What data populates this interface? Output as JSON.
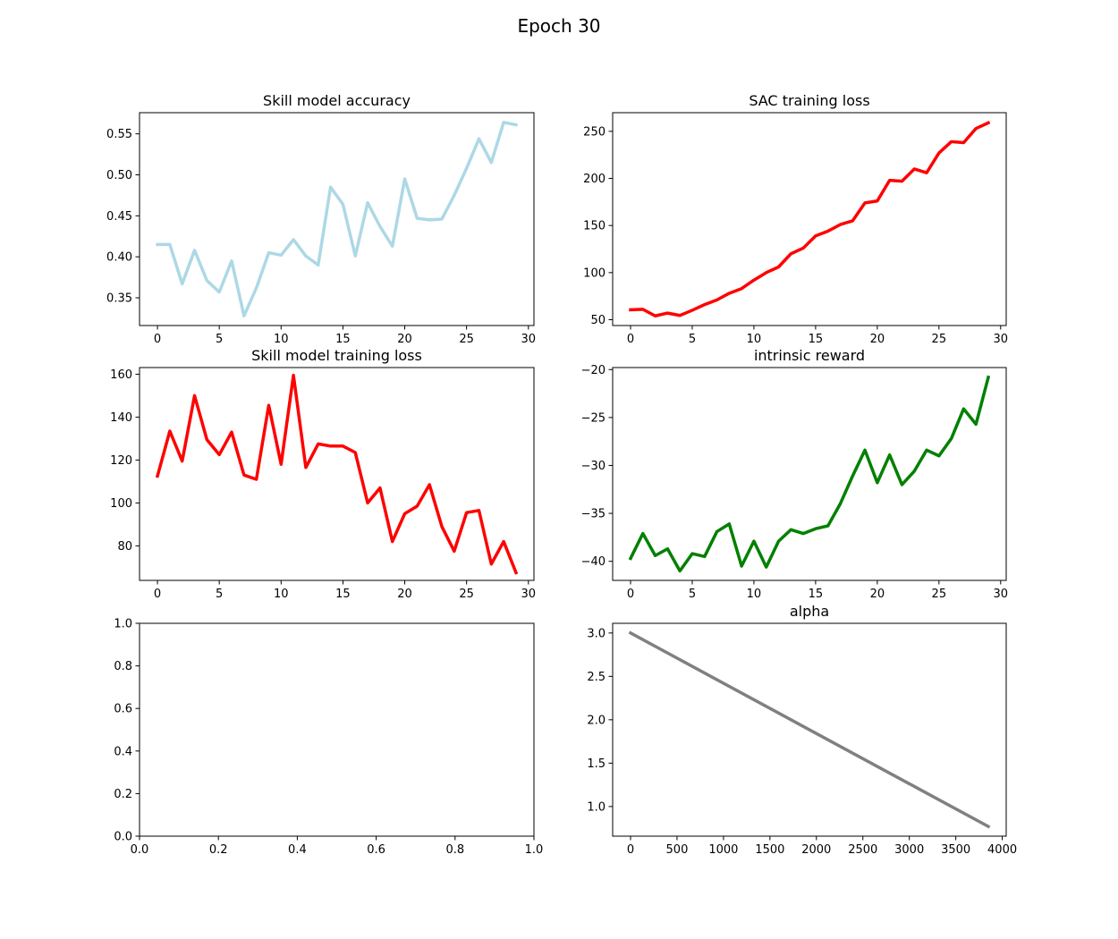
{
  "figure": {
    "suptitle": "Epoch 30"
  },
  "chart_data": [
    {
      "type": "line",
      "title": "Skill model accuracy",
      "color": "#add8e6",
      "x": [
        0,
        1,
        2,
        3,
        4,
        5,
        6,
        7,
        8,
        9,
        10,
        11,
        12,
        13,
        14,
        15,
        16,
        17,
        18,
        19,
        20,
        21,
        22,
        23,
        24,
        25,
        26,
        27,
        28,
        29
      ],
      "y": [
        0.415,
        0.415,
        0.367,
        0.408,
        0.371,
        0.357,
        0.395,
        0.328,
        0.362,
        0.405,
        0.402,
        0.421,
        0.401,
        0.39,
        0.485,
        0.464,
        0.401,
        0.466,
        0.437,
        0.413,
        0.495,
        0.447,
        0.445,
        0.446,
        0.475,
        0.508,
        0.544,
        0.515,
        0.564,
        0.561
      ],
      "xlim": [
        -1.45,
        30.45
      ],
      "ylim": [
        0.3162,
        0.5758
      ],
      "xticks": [
        0,
        5,
        10,
        15,
        20,
        25,
        30
      ],
      "xtick_labels": [
        "0",
        "5",
        "10",
        "15",
        "20",
        "25",
        "30"
      ],
      "yticks": [
        0.35,
        0.4,
        0.45,
        0.5,
        0.55
      ],
      "ytick_labels": [
        "0.35",
        "0.40",
        "0.45",
        "0.50",
        "0.55"
      ]
    },
    {
      "type": "line",
      "title": "SAC training loss",
      "color": "#ff0000",
      "x": [
        0,
        1,
        2,
        3,
        4,
        5,
        6,
        7,
        8,
        9,
        10,
        11,
        12,
        13,
        14,
        15,
        16,
        17,
        18,
        19,
        20,
        21,
        22,
        23,
        24,
        25,
        26,
        27,
        28,
        29
      ],
      "y": [
        60.5,
        61,
        54,
        57,
        54.5,
        60,
        66,
        71,
        78,
        83,
        92,
        100,
        106,
        120,
        126,
        139,
        144,
        151,
        155,
        174,
        176,
        198,
        197,
        210,
        206,
        227,
        239,
        238,
        253,
        259
      ],
      "xlim": [
        -1.45,
        30.45
      ],
      "ylim": [
        43.8,
        269.8
      ],
      "xticks": [
        0,
        5,
        10,
        15,
        20,
        25,
        30
      ],
      "xtick_labels": [
        "0",
        "5",
        "10",
        "15",
        "20",
        "25",
        "30"
      ],
      "yticks": [
        50,
        100,
        150,
        200,
        250
      ],
      "ytick_labels": [
        "50",
        "100",
        "150",
        "200",
        "250"
      ]
    },
    {
      "type": "line",
      "title": "Skill model training loss",
      "color": "#ff0000",
      "x": [
        0,
        1,
        2,
        3,
        4,
        5,
        6,
        7,
        8,
        9,
        10,
        11,
        12,
        13,
        14,
        15,
        16,
        17,
        18,
        19,
        20,
        21,
        22,
        23,
        24,
        25,
        26,
        27,
        28,
        29
      ],
      "y": [
        112.5,
        133.5,
        119.5,
        150,
        129.5,
        122.5,
        133,
        113,
        111,
        145.5,
        118,
        159.5,
        116.5,
        127.5,
        126.5,
        126.5,
        123.5,
        100,
        107,
        82,
        95,
        98.5,
        108.5,
        89,
        77.5,
        95.5,
        96.5,
        71.5,
        82,
        67.5
      ],
      "xlim": [
        -1.45,
        30.45
      ],
      "ylim": [
        63.9,
        163.1
      ],
      "xticks": [
        0,
        5,
        10,
        15,
        20,
        25,
        30
      ],
      "xtick_labels": [
        "0",
        "5",
        "10",
        "15",
        "20",
        "25",
        "30"
      ],
      "yticks": [
        80,
        100,
        120,
        140,
        160
      ],
      "ytick_labels": [
        "80",
        "100",
        "120",
        "140",
        "160"
      ]
    },
    {
      "type": "line",
      "title": "intrinsic reward",
      "color": "#008000",
      "x": [
        0,
        1,
        2,
        3,
        4,
        5,
        6,
        7,
        8,
        9,
        10,
        11,
        12,
        13,
        14,
        15,
        16,
        17,
        18,
        19,
        20,
        21,
        22,
        23,
        24,
        25,
        26,
        27,
        28,
        29
      ],
      "y": [
        -39.7,
        -37.1,
        -39.4,
        -38.7,
        -41.0,
        -39.2,
        -39.5,
        -36.9,
        -36.1,
        -40.5,
        -37.9,
        -40.6,
        -37.9,
        -36.7,
        -37.1,
        -36.6,
        -36.3,
        -34.0,
        -31.1,
        -28.4,
        -31.8,
        -28.9,
        -32.0,
        -30.6,
        -28.4,
        -29.0,
        -27.2,
        -24.1,
        -25.7,
        -20.8
      ],
      "xlim": [
        -1.45,
        30.45
      ],
      "ylim": [
        -41.99,
        -19.79
      ],
      "xticks": [
        0,
        5,
        10,
        15,
        20,
        25,
        30
      ],
      "xtick_labels": [
        "0",
        "5",
        "10",
        "15",
        "20",
        "25",
        "30"
      ],
      "yticks": [
        -40,
        -35,
        -30,
        -25,
        -20
      ],
      "ytick_labels": [
        "−40",
        "−35",
        "−30",
        "−25",
        "−20"
      ]
    },
    {
      "type": "line",
      "title": "",
      "empty": true,
      "color": "#000000",
      "x": [],
      "y": [],
      "xlim": [
        0,
        1
      ],
      "ylim": [
        0,
        1
      ],
      "xticks": [
        0,
        0.2,
        0.4,
        0.6,
        0.8,
        1.0
      ],
      "xtick_labels": [
        "0.0",
        "0.2",
        "0.4",
        "0.6",
        "0.8",
        "1.0"
      ],
      "yticks": [
        0,
        0.2,
        0.4,
        0.6,
        0.8,
        1.0
      ],
      "ytick_labels": [
        "0.0",
        "0.2",
        "0.4",
        "0.6",
        "0.8",
        "1.0"
      ]
    },
    {
      "type": "line",
      "title": "alpha",
      "color": "#808080",
      "x": [
        0,
        3850
      ],
      "y": [
        3.0,
        0.77
      ],
      "xlim": [
        -192.5,
        4042.5
      ],
      "ylim": [
        0.6585,
        3.1115
      ],
      "xticks": [
        0,
        500,
        1000,
        1500,
        2000,
        2500,
        3000,
        3500,
        4000
      ],
      "xtick_labels": [
        "0",
        "500",
        "1000",
        "1500",
        "2000",
        "2500",
        "3000",
        "3500",
        "4000"
      ],
      "yticks": [
        1.0,
        1.5,
        2.0,
        2.5,
        3.0
      ],
      "ytick_labels": [
        "1.0",
        "1.5",
        "2.0",
        "2.5",
        "3.0"
      ]
    }
  ]
}
